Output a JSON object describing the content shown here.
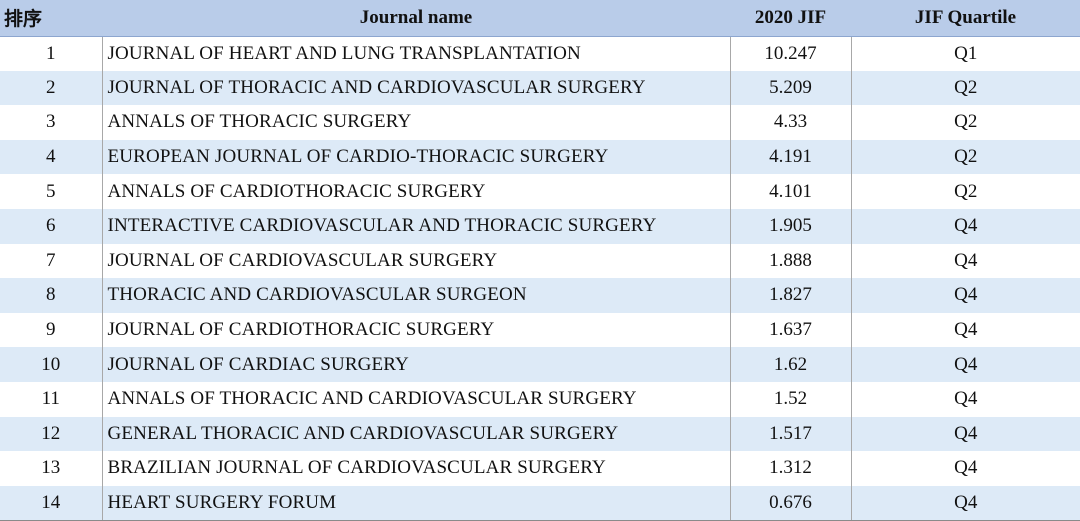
{
  "table": {
    "headers": {
      "rank": "排序",
      "name": "Journal name",
      "jif": "2020 JIF",
      "quartile": "JIF Quartile"
    },
    "rows": [
      {
        "rank": "1",
        "name": "JOURNAL OF HEART AND LUNG TRANSPLANTATION",
        "jif": "10.247",
        "quartile": "Q1"
      },
      {
        "rank": "2",
        "name": "JOURNAL OF THORACIC AND CARDIOVASCULAR SURGERY",
        "jif": "5.209",
        "quartile": "Q2"
      },
      {
        "rank": "3",
        "name": "ANNALS OF THORACIC SURGERY",
        "jif": "4.33",
        "quartile": "Q2"
      },
      {
        "rank": "4",
        "name": "EUROPEAN JOURNAL OF CARDIO-THORACIC SURGERY",
        "jif": "4.191",
        "quartile": "Q2"
      },
      {
        "rank": "5",
        "name": "ANNALS OF CARDIOTHORACIC SURGERY",
        "jif": "4.101",
        "quartile": "Q2"
      },
      {
        "rank": "6",
        "name": "INTERACTIVE CARDIOVASCULAR AND THORACIC SURGERY",
        "jif": "1.905",
        "quartile": "Q4"
      },
      {
        "rank": "7",
        "name": "JOURNAL OF CARDIOVASCULAR SURGERY",
        "jif": "1.888",
        "quartile": "Q4"
      },
      {
        "rank": "8",
        "name": "THORACIC AND CARDIOVASCULAR SURGEON",
        "jif": "1.827",
        "quartile": "Q4"
      },
      {
        "rank": "9",
        "name": "JOURNAL OF CARDIOTHORACIC SURGERY",
        "jif": "1.637",
        "quartile": "Q4"
      },
      {
        "rank": "10",
        "name": "JOURNAL OF CARDIAC SURGERY",
        "jif": "1.62",
        "quartile": "Q4"
      },
      {
        "rank": "11",
        "name": "ANNALS OF THORACIC AND CARDIOVASCULAR SURGERY",
        "jif": "1.52",
        "quartile": "Q4"
      },
      {
        "rank": "12",
        "name": "GENERAL THORACIC AND CARDIOVASCULAR SURGERY",
        "jif": "1.517",
        "quartile": "Q4"
      },
      {
        "rank": "13",
        "name": "BRAZILIAN JOURNAL OF CARDIOVASCULAR SURGERY",
        "jif": "1.312",
        "quartile": "Q4"
      },
      {
        "rank": "14",
        "name": "HEART SURGERY FORUM",
        "jif": "0.676",
        "quartile": "Q4"
      }
    ]
  },
  "colors": {
    "header_bg": "#b9cce9",
    "stripe_bg": "#ddeaf7",
    "row_bg": "#ffffff"
  }
}
